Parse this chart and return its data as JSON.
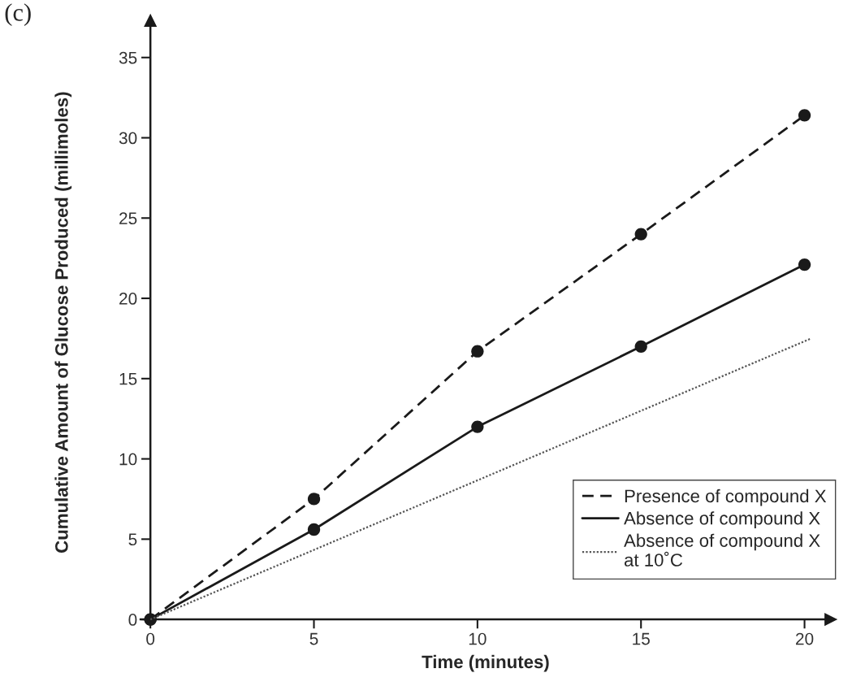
{
  "chart_data": {
    "type": "line",
    "xlabel": "Time (minutes)",
    "ylabel": "Cumulative Amount of Glucose Produced (millimoles)",
    "annotations": [
      "(c)"
    ],
    "x": [
      0,
      5,
      10,
      15,
      20
    ],
    "series": [
      {
        "name": "Presence of compound X",
        "color": "#1a1a1a",
        "values": [
          0,
          7.5,
          16.7,
          24,
          31.4
        ],
        "line_style": "dashed",
        "marker": "circle"
      },
      {
        "name": "Absence of compound X",
        "color": "#1a1a1a",
        "values": [
          0,
          5.6,
          12,
          17,
          22.1
        ],
        "line_style": "solid",
        "marker": "circle"
      },
      {
        "name": "Absence of compound X\nat 10˚C",
        "color": "#555555",
        "x": [
          0,
          20.2
        ],
        "values": [
          0,
          17.5
        ],
        "line_style": "dotted",
        "marker": "none"
      }
    ],
    "xlim": [
      -0.3,
      20.8
    ],
    "ylim": [
      -0.3,
      37.3
    ],
    "xticks": [
      0,
      5,
      10,
      15,
      20
    ],
    "yticks": [
      0,
      5,
      10,
      15,
      20,
      25,
      30,
      35
    ],
    "grid": false,
    "legend": "bottom right"
  }
}
